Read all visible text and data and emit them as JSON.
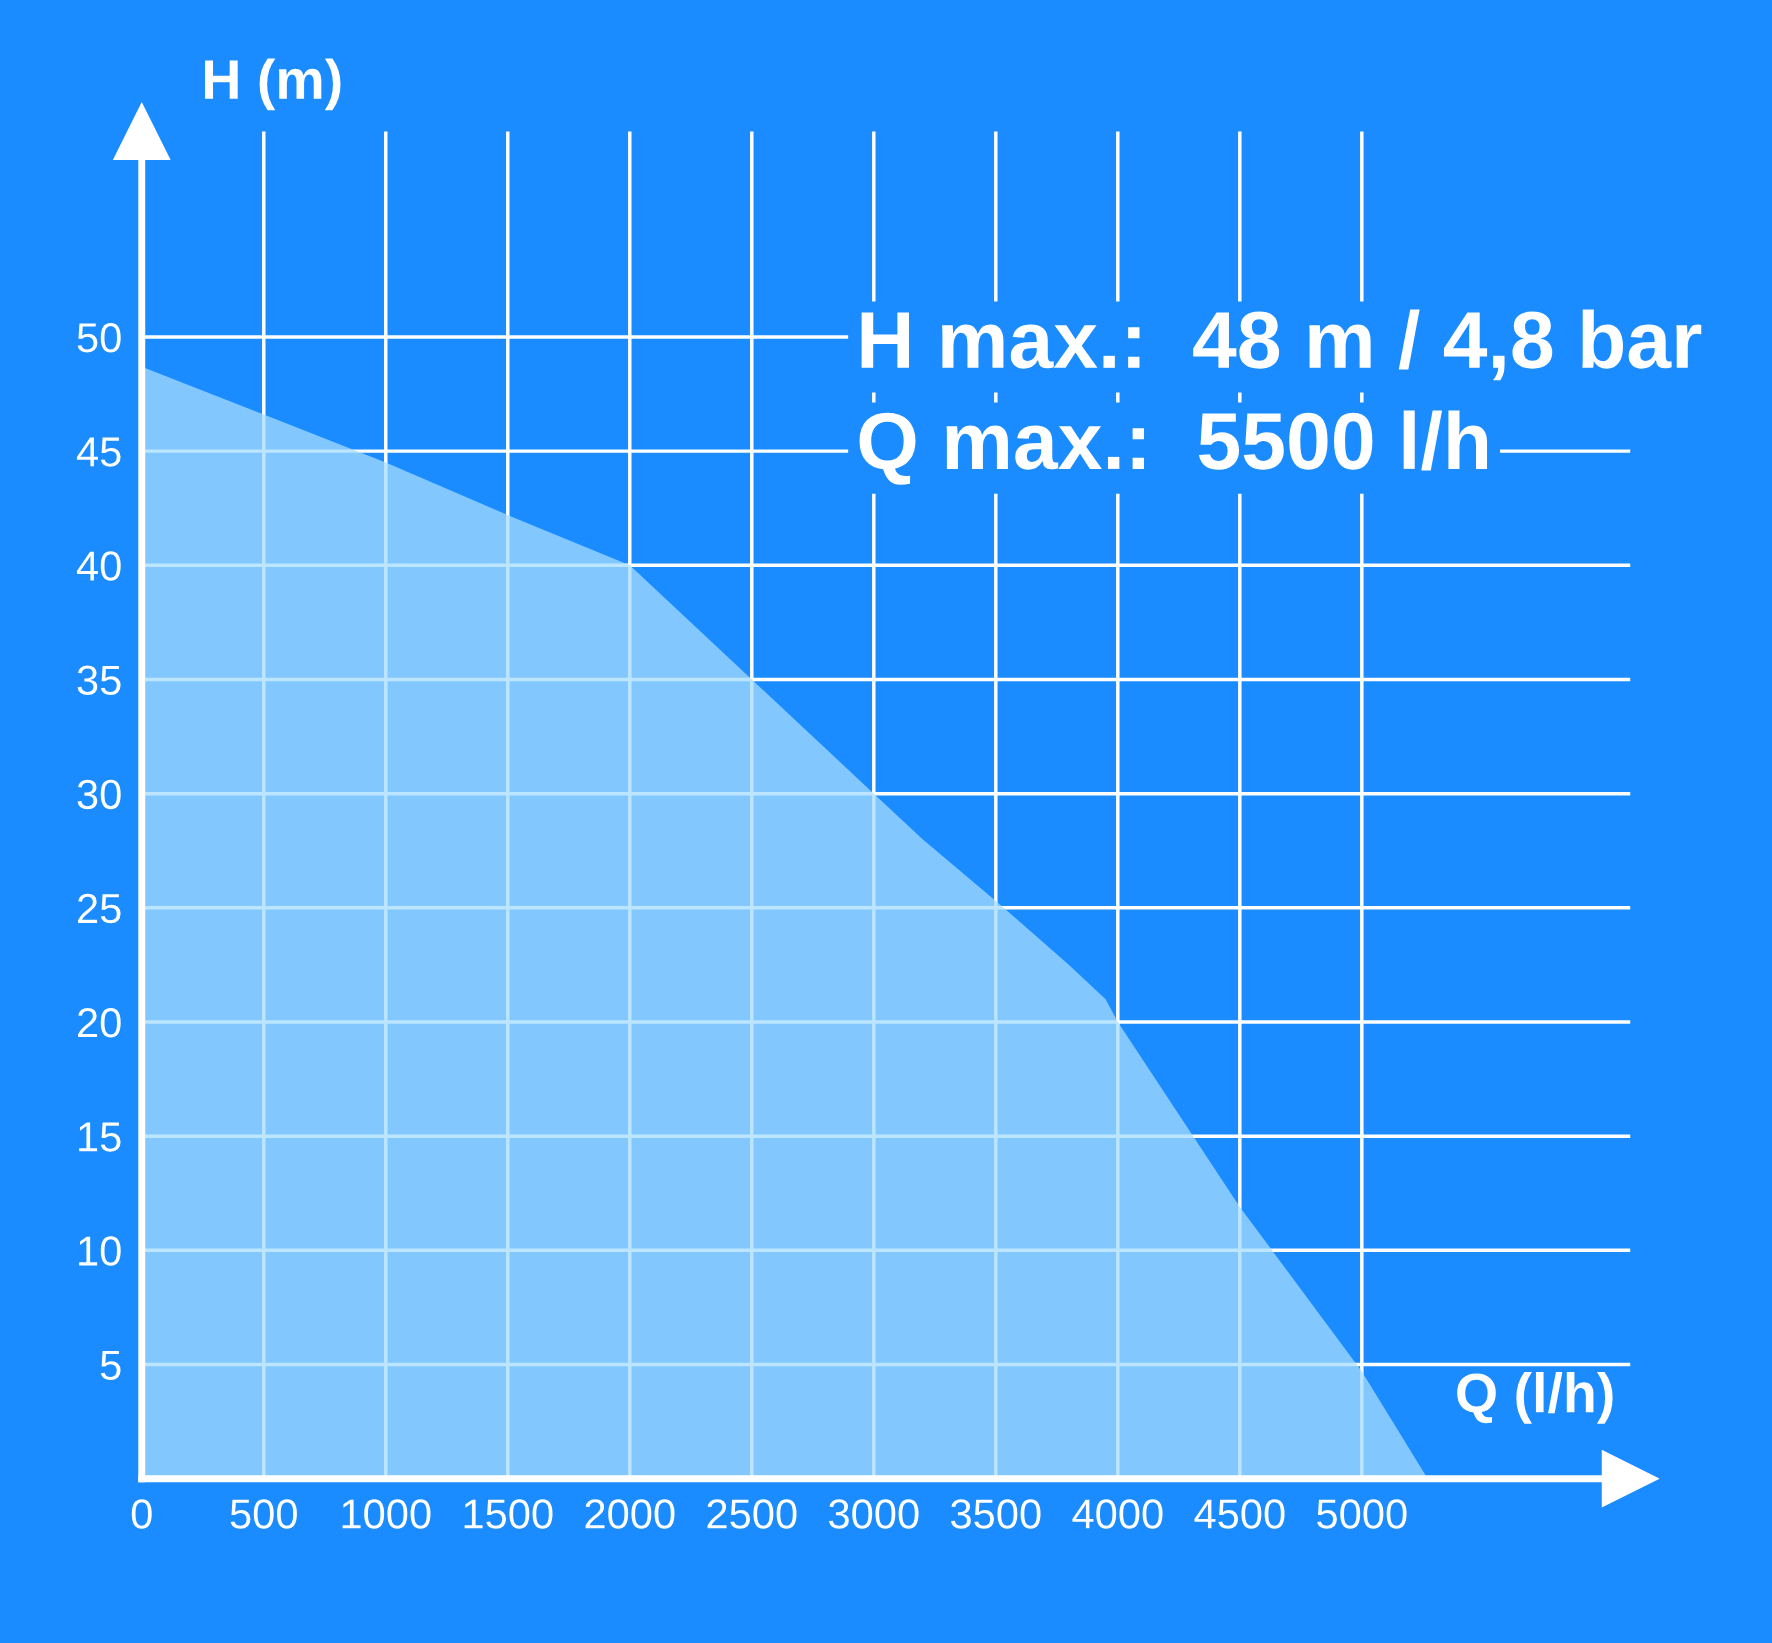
{
  "chart_data": {
    "type": "area",
    "xlabel": "Q (l/h)",
    "ylabel": "H (m)",
    "annotations": [
      "H max.:  48 m / 4,8 bar",
      "Q max.:  5500 l/h"
    ],
    "x": [
      0,
      500,
      1000,
      1500,
      2000,
      2500,
      3000,
      3200,
      3500,
      3800,
      3950,
      4000,
      4500,
      5000,
      5270
    ],
    "series": [
      {
        "color": "#a6dcff",
        "values": [
          48.7,
          46.6,
          44.5,
          42.2,
          40,
          35,
          30,
          28,
          25.3,
          22.5,
          21,
          20,
          11.9,
          4.7,
          0
        ]
      }
    ],
    "xlim": [
      0,
      6100
    ],
    "ylim": [
      0,
      59
    ],
    "xticks": [
      0,
      500,
      1000,
      1500,
      2000,
      2500,
      3000,
      3500,
      4000,
      4500,
      5000
    ],
    "yticks": [
      5,
      10,
      15,
      20,
      25,
      30,
      35,
      40,
      45,
      50
    ],
    "grid": true
  }
}
